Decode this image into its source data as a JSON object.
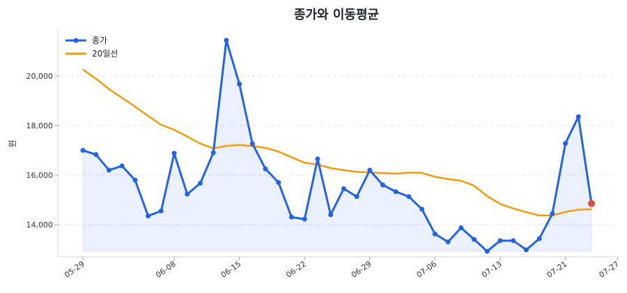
{
  "chart_data": {
    "type": "line",
    "title": "종가와 이동평균",
    "xlabel": "",
    "ylabel": "원",
    "ylim": [
      12700,
      21950
    ],
    "yticks": [
      14000,
      16000,
      18000,
      20000
    ],
    "ytick_labels": [
      "14,000",
      "16,000",
      "18,000",
      "20,000"
    ],
    "xtick_labels": [
      "05-29",
      "06-08",
      "06-15",
      "06-22",
      "06-29",
      "07-06",
      "07-13",
      "07-21",
      "07-27"
    ],
    "xtick_index": [
      0,
      7,
      12,
      17,
      22,
      27,
      32,
      37,
      41
    ],
    "grid": "horizontal-dashed",
    "legend": "top-left",
    "series": [
      {
        "name": "종가",
        "color": "#2462e0",
        "marker": "circle",
        "fill": true,
        "last_point_color": "#e14a3c",
        "values": [
          17000,
          16830,
          16200,
          16370,
          15800,
          14350,
          14550,
          16880,
          15230,
          15670,
          16900,
          21450,
          19680,
          17270,
          16250,
          15700,
          14300,
          14220,
          16650,
          14400,
          15450,
          15130,
          16200,
          15600,
          15330,
          15130,
          14620,
          13620,
          13300,
          13870,
          13400,
          12920,
          13350,
          13350,
          12980,
          13430,
          14440,
          17280,
          18360,
          14850
        ]
      },
      {
        "name": "20일선",
        "color": "#f29a0e",
        "marker": "none",
        "fill": false,
        "values": [
          20270,
          19890,
          19480,
          19120,
          18770,
          18390,
          18030,
          17830,
          17560,
          17270,
          17080,
          17180,
          17220,
          17170,
          17100,
          16950,
          16720,
          16500,
          16430,
          16280,
          16200,
          16130,
          16110,
          16080,
          16060,
          16100,
          16090,
          15930,
          15840,
          15770,
          15570,
          15150,
          14830,
          14650,
          14500,
          14370,
          14370,
          14510,
          14600,
          14620
        ]
      }
    ]
  }
}
